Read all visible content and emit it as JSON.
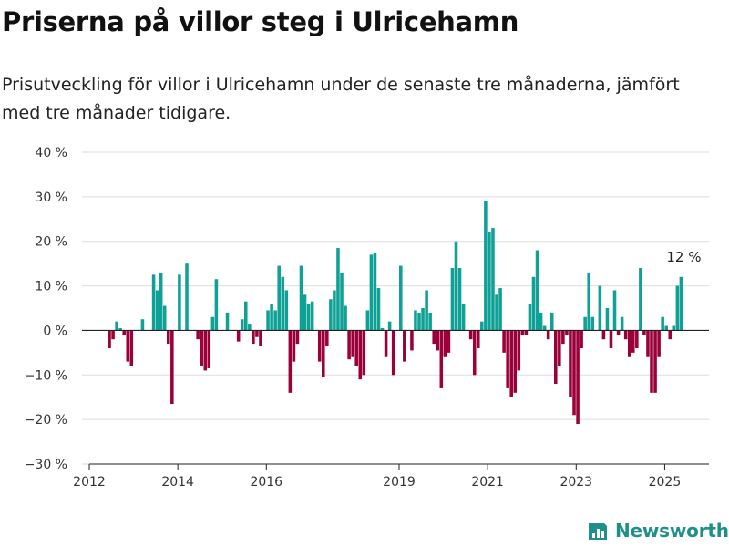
{
  "title": "Priserna på villor steg i Ulricehamn",
  "subtitle": "Prisutveckling för villor i Ulricehamn under de senaste tre månaderna, jämfört med tre månader tidigare.",
  "brand": {
    "name": "Newsworthy",
    "icon": "newsworthy-logo-icon"
  },
  "colors": {
    "positive": "#0fa196",
    "negative": "#9b0039",
    "grid": "#dddddd",
    "zero": "#222222",
    "text": "#333333"
  },
  "chart_data": {
    "type": "bar",
    "ylim": [
      -30,
      40
    ],
    "yticks": [
      -30,
      -20,
      -10,
      0,
      10,
      20,
      30,
      40
    ],
    "ytick_labels": [
      "−30 %",
      "−20 %",
      "−10 %",
      "0 %",
      "10 %",
      "20 %",
      "30 %",
      "40 %"
    ],
    "grid": true,
    "x_range": [
      "2012-01",
      "2025-12"
    ],
    "xtick_labels": [
      {
        "x": "2012-01",
        "label": "2012"
      },
      {
        "x": "2014-01",
        "label": "2014"
      },
      {
        "x": "2016-01",
        "label": "2016"
      },
      {
        "x": "2019-01",
        "label": "2019"
      },
      {
        "x": "2021-01",
        "label": "2021"
      },
      {
        "x": "2023-01",
        "label": "2023"
      },
      {
        "x": "2025-01",
        "label": "2025"
      }
    ],
    "annotation": {
      "x": "2025-06",
      "label": "12 %"
    },
    "points": [
      {
        "x": "2012-06",
        "y": -4
      },
      {
        "x": "2012-07",
        "y": -2
      },
      {
        "x": "2012-08",
        "y": 2
      },
      {
        "x": "2012-09",
        "y": 0.5
      },
      {
        "x": "2012-10",
        "y": -1
      },
      {
        "x": "2012-11",
        "y": -7
      },
      {
        "x": "2012-12",
        "y": -8
      },
      {
        "x": "2013-03",
        "y": 2.5
      },
      {
        "x": "2013-06",
        "y": 12.5
      },
      {
        "x": "2013-07",
        "y": 9
      },
      {
        "x": "2013-08",
        "y": 13
      },
      {
        "x": "2013-09",
        "y": 5.5
      },
      {
        "x": "2013-10",
        "y": -3
      },
      {
        "x": "2013-11",
        "y": -16.5
      },
      {
        "x": "2014-01",
        "y": 12.5
      },
      {
        "x": "2014-03",
        "y": 15
      },
      {
        "x": "2014-06",
        "y": -2
      },
      {
        "x": "2014-07",
        "y": -8
      },
      {
        "x": "2014-08",
        "y": -9
      },
      {
        "x": "2014-09",
        "y": -8.5
      },
      {
        "x": "2014-10",
        "y": 3
      },
      {
        "x": "2014-11",
        "y": 11.5
      },
      {
        "x": "2015-02",
        "y": 4
      },
      {
        "x": "2015-05",
        "y": -2.5
      },
      {
        "x": "2015-06",
        "y": 2.5
      },
      {
        "x": "2015-07",
        "y": 6.5
      },
      {
        "x": "2015-08",
        "y": 1.5
      },
      {
        "x": "2015-09",
        "y": -3
      },
      {
        "x": "2015-10",
        "y": -1.5
      },
      {
        "x": "2015-11",
        "y": -3.5
      },
      {
        "x": "2016-01",
        "y": 4.5
      },
      {
        "x": "2016-02",
        "y": 6
      },
      {
        "x": "2016-03",
        "y": 4.5
      },
      {
        "x": "2016-04",
        "y": 14.5
      },
      {
        "x": "2016-05",
        "y": 12
      },
      {
        "x": "2016-06",
        "y": 9
      },
      {
        "x": "2016-07",
        "y": -14
      },
      {
        "x": "2016-08",
        "y": -7
      },
      {
        "x": "2016-09",
        "y": -3
      },
      {
        "x": "2016-10",
        "y": 14.5
      },
      {
        "x": "2016-11",
        "y": 8
      },
      {
        "x": "2016-12",
        "y": 6
      },
      {
        "x": "2017-01",
        "y": 6.5
      },
      {
        "x": "2017-03",
        "y": -7
      },
      {
        "x": "2017-04",
        "y": -10.5
      },
      {
        "x": "2017-05",
        "y": -3.5
      },
      {
        "x": "2017-06",
        "y": 7
      },
      {
        "x": "2017-07",
        "y": 9
      },
      {
        "x": "2017-08",
        "y": 18.5
      },
      {
        "x": "2017-09",
        "y": 13
      },
      {
        "x": "2017-10",
        "y": 5.5
      },
      {
        "x": "2017-11",
        "y": -6.5
      },
      {
        "x": "2017-12",
        "y": -6
      },
      {
        "x": "2018-01",
        "y": -8
      },
      {
        "x": "2018-02",
        "y": -11
      },
      {
        "x": "2018-03",
        "y": -10
      },
      {
        "x": "2018-04",
        "y": 4.5
      },
      {
        "x": "2018-05",
        "y": 17
      },
      {
        "x": "2018-06",
        "y": 17.5
      },
      {
        "x": "2018-07",
        "y": 9.5
      },
      {
        "x": "2018-08",
        "y": 0.5
      },
      {
        "x": "2018-09",
        "y": -6
      },
      {
        "x": "2018-10",
        "y": 2
      },
      {
        "x": "2018-11",
        "y": -10
      },
      {
        "x": "2019-01",
        "y": 14.5
      },
      {
        "x": "2019-02",
        "y": -7
      },
      {
        "x": "2019-04",
        "y": -4.5
      },
      {
        "x": "2019-05",
        "y": 4.5
      },
      {
        "x": "2019-06",
        "y": 4
      },
      {
        "x": "2019-07",
        "y": 5
      },
      {
        "x": "2019-08",
        "y": 9
      },
      {
        "x": "2019-09",
        "y": 4
      },
      {
        "x": "2019-10",
        "y": -3
      },
      {
        "x": "2019-11",
        "y": -4.5
      },
      {
        "x": "2019-12",
        "y": -13
      },
      {
        "x": "2020-01",
        "y": -6
      },
      {
        "x": "2020-02",
        "y": -5
      },
      {
        "x": "2020-03",
        "y": 14
      },
      {
        "x": "2020-04",
        "y": 20
      },
      {
        "x": "2020-05",
        "y": 14
      },
      {
        "x": "2020-06",
        "y": 6
      },
      {
        "x": "2020-08",
        "y": -2
      },
      {
        "x": "2020-09",
        "y": -10
      },
      {
        "x": "2020-10",
        "y": -4
      },
      {
        "x": "2020-11",
        "y": 2
      },
      {
        "x": "2020-12",
        "y": 29
      },
      {
        "x": "2021-01",
        "y": 22
      },
      {
        "x": "2021-02",
        "y": 23
      },
      {
        "x": "2021-03",
        "y": 8
      },
      {
        "x": "2021-04",
        "y": 9.5
      },
      {
        "x": "2021-05",
        "y": -5
      },
      {
        "x": "2021-06",
        "y": -13
      },
      {
        "x": "2021-07",
        "y": -15
      },
      {
        "x": "2021-08",
        "y": -14
      },
      {
        "x": "2021-09",
        "y": -9
      },
      {
        "x": "2021-10",
        "y": -1
      },
      {
        "x": "2021-11",
        "y": -1
      },
      {
        "x": "2021-12",
        "y": 6
      },
      {
        "x": "2022-01",
        "y": 12
      },
      {
        "x": "2022-02",
        "y": 18
      },
      {
        "x": "2022-03",
        "y": 4
      },
      {
        "x": "2022-04",
        "y": 1
      },
      {
        "x": "2022-05",
        "y": -2
      },
      {
        "x": "2022-06",
        "y": 4
      },
      {
        "x": "2022-07",
        "y": -12
      },
      {
        "x": "2022-08",
        "y": -8
      },
      {
        "x": "2022-09",
        "y": -3
      },
      {
        "x": "2022-10",
        "y": -1
      },
      {
        "x": "2022-11",
        "y": -15
      },
      {
        "x": "2022-12",
        "y": -19
      },
      {
        "x": "2023-01",
        "y": -21
      },
      {
        "x": "2023-02",
        "y": -4
      },
      {
        "x": "2023-03",
        "y": 3
      },
      {
        "x": "2023-04",
        "y": 13
      },
      {
        "x": "2023-05",
        "y": 3
      },
      {
        "x": "2023-07",
        "y": 10
      },
      {
        "x": "2023-08",
        "y": -2
      },
      {
        "x": "2023-09",
        "y": 5
      },
      {
        "x": "2023-10",
        "y": -4
      },
      {
        "x": "2023-11",
        "y": 9
      },
      {
        "x": "2023-12",
        "y": -1
      },
      {
        "x": "2024-01",
        "y": 3
      },
      {
        "x": "2024-02",
        "y": -2
      },
      {
        "x": "2024-03",
        "y": -6
      },
      {
        "x": "2024-04",
        "y": -5
      },
      {
        "x": "2024-05",
        "y": -4
      },
      {
        "x": "2024-06",
        "y": 14
      },
      {
        "x": "2024-07",
        "y": -1
      },
      {
        "x": "2024-08",
        "y": -6
      },
      {
        "x": "2024-09",
        "y": -14
      },
      {
        "x": "2024-10",
        "y": -14
      },
      {
        "x": "2024-11",
        "y": -6
      },
      {
        "x": "2024-12",
        "y": 3
      },
      {
        "x": "2025-01",
        "y": 1
      },
      {
        "x": "2025-02",
        "y": -2
      },
      {
        "x": "2025-03",
        "y": 1
      },
      {
        "x": "2025-04",
        "y": 10
      },
      {
        "x": "2025-05",
        "y": 12
      }
    ]
  }
}
